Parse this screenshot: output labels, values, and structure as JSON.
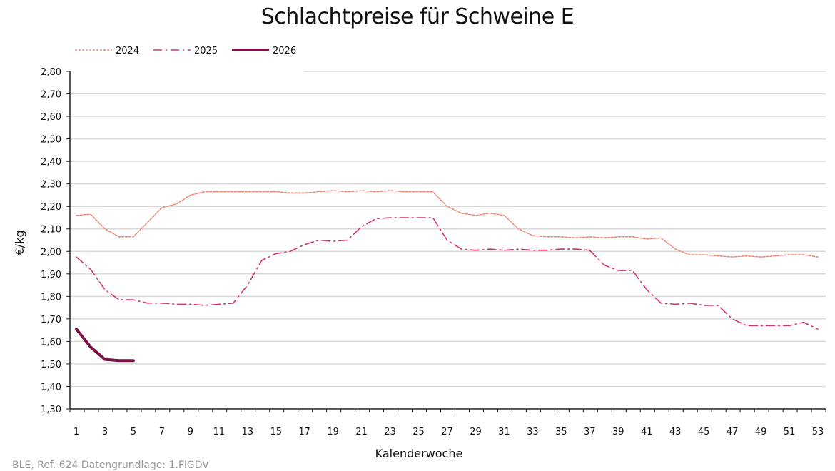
{
  "chart_data": {
    "type": "line",
    "title": "Schlachtpreise für Schweine E",
    "xlabel": "Kalenderwoche",
    "ylabel": "€/kg",
    "ylim": [
      1.3,
      2.8
    ],
    "xlim": [
      1,
      53
    ],
    "grid": "horizontal",
    "legend_position": "top-left",
    "y_ticks": [
      "1,30",
      "1,40",
      "1,50",
      "1,60",
      "1,70",
      "1,80",
      "1,90",
      "2,00",
      "2,10",
      "2,20",
      "2,30",
      "2,40",
      "2,50",
      "2,60",
      "2,70",
      "2,80"
    ],
    "x_ticks": [
      "1",
      "3",
      "5",
      "7",
      "9",
      "11",
      "13",
      "15",
      "17",
      "19",
      "21",
      "23",
      "25",
      "27",
      "29",
      "31",
      "33",
      "35",
      "37",
      "39",
      "41",
      "43",
      "45",
      "47",
      "49",
      "51",
      "53"
    ],
    "series": [
      {
        "name": "2024",
        "color": "#f08a78",
        "style": "dotted",
        "x": [
          1,
          2,
          3,
          4,
          5,
          6,
          7,
          8,
          9,
          10,
          11,
          12,
          13,
          14,
          15,
          16,
          17,
          18,
          19,
          20,
          21,
          22,
          23,
          24,
          25,
          26,
          27,
          28,
          29,
          30,
          31,
          32,
          33,
          34,
          35,
          36,
          37,
          38,
          39,
          40,
          41,
          42,
          43,
          44,
          45,
          46,
          47,
          48,
          49,
          50,
          51,
          52,
          53
        ],
        "values": [
          2.16,
          2.165,
          2.1,
          2.065,
          2.065,
          2.13,
          2.195,
          2.21,
          2.25,
          2.265,
          2.265,
          2.265,
          2.265,
          2.265,
          2.265,
          2.26,
          2.26,
          2.265,
          2.27,
          2.265,
          2.27,
          2.265,
          2.27,
          2.265,
          2.265,
          2.265,
          2.2,
          2.17,
          2.16,
          2.17,
          2.16,
          2.1,
          2.07,
          2.065,
          2.065,
          2.06,
          2.065,
          2.06,
          2.065,
          2.065,
          2.055,
          2.06,
          2.01,
          1.985,
          1.985,
          1.98,
          1.975,
          1.98,
          1.975,
          1.98,
          1.985,
          1.985,
          1.975
        ]
      },
      {
        "name": "2025",
        "color": "#d6336c",
        "style": "dash-dot",
        "x": [
          1,
          2,
          3,
          4,
          5,
          6,
          7,
          8,
          9,
          10,
          11,
          12,
          13,
          14,
          15,
          16,
          17,
          18,
          19,
          20,
          21,
          22,
          23,
          24,
          25,
          26,
          27,
          28,
          29,
          30,
          31,
          32,
          33,
          34,
          35,
          36,
          37,
          38,
          39,
          40,
          41,
          42,
          43,
          44,
          45,
          46,
          47,
          48,
          49,
          50,
          51,
          52,
          53
        ],
        "values": [
          1.975,
          1.92,
          1.83,
          1.785,
          1.785,
          1.77,
          1.77,
          1.765,
          1.765,
          1.76,
          1.765,
          1.77,
          1.85,
          1.96,
          1.99,
          2.0,
          2.03,
          2.05,
          2.045,
          2.05,
          2.11,
          2.145,
          2.15,
          2.15,
          2.15,
          2.15,
          2.05,
          2.01,
          2.005,
          2.01,
          2.005,
          2.01,
          2.005,
          2.005,
          2.01,
          2.01,
          2.005,
          1.94,
          1.915,
          1.915,
          1.83,
          1.77,
          1.765,
          1.77,
          1.76,
          1.76,
          1.7,
          1.67,
          1.67,
          1.67,
          1.67,
          1.685,
          1.655
        ]
      },
      {
        "name": "2026",
        "color": "#7b1145",
        "style": "solid",
        "x": [
          1,
          2,
          3,
          4,
          5
        ],
        "values": [
          1.655,
          1.575,
          1.52,
          1.515,
          1.515
        ]
      }
    ]
  },
  "source": "BLE, Ref. 624 Datengrundlage: 1.FlGDV"
}
